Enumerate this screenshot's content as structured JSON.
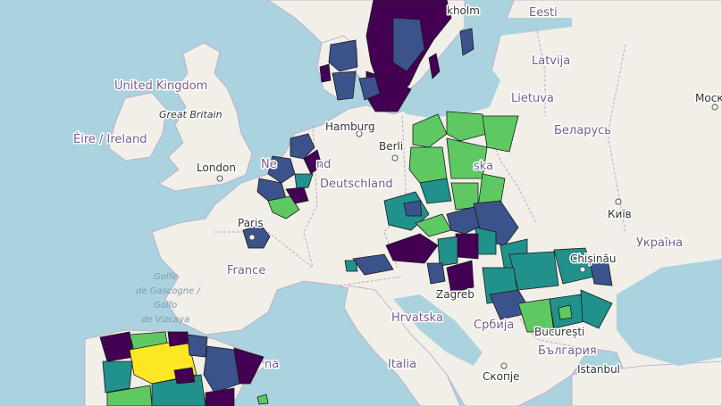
{
  "colors": {
    "sea": "#aad3df",
    "land": "#f2efe9",
    "viridis_purple": "#440154",
    "viridis_indigo": "#3b528b",
    "viridis_teal": "#21918c",
    "viridis_green": "#5ec962",
    "viridis_yellow": "#fde725"
  },
  "labels": {
    "eesti": "Eesti",
    "stockholm": "kholm",
    "latvija": "Latvija",
    "lietuva": "Lietuva",
    "moskva": "Моск",
    "belarus": "Беларусь",
    "united_kingdom": "United Kingdom",
    "great_britain": "Great Britain",
    "eire": "Éire / Ireland",
    "london": "London",
    "hamburg": "Hamburg",
    "berlin": "Berli",
    "nederland": "Ne",
    "nederland_end": "nd",
    "polska": "ska",
    "deutschland": "Deutschland",
    "kyiv": "Київ",
    "ukraina": "Україна",
    "paris": "Paris",
    "france": "France",
    "golfe1": "Golfe",
    "golfe2": "de Gascogne /",
    "golfe3": "Golfo",
    "golfe4": "de Vizcaya",
    "chisinau": "Chișinău",
    "zagreb": "Zagreb",
    "hrvatska": "Hrvatska",
    "srbija": "Србија",
    "bucuresti": "București",
    "bulgaria": "България",
    "italia": "Italia",
    "skopje": "Скопје",
    "istanbul": "Istanbul",
    "espana_end": "na"
  }
}
